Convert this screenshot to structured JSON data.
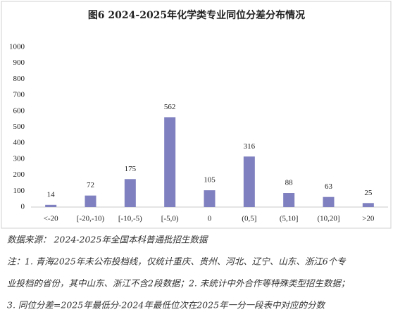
{
  "chart_data": {
    "type": "bar",
    "title": "图6  2024-2025年化学类专业同位分差分布情况",
    "categories": [
      "<-20",
      "[-20,-10)",
      "[-10,-5)",
      "[-5,0)",
      "0",
      "(0,5]",
      "(5,10]",
      "(10,20]",
      ">20"
    ],
    "values": [
      14,
      72,
      175,
      562,
      105,
      316,
      88,
      63,
      25
    ],
    "color": "#7f80bf",
    "ylim": [
      0,
      1000
    ],
    "yticks": [
      0,
      100,
      200,
      300,
      400,
      500,
      600,
      700,
      800,
      900,
      1000
    ],
    "grid": false
  },
  "notes": [
    "数据来源：  2024-2025年全国本科普通批招生数据",
    "注：1. 青海2025年未公布投档线，仅统计重庆、贵州、河北、辽宁、山东、浙江6个专",
    "业投档的省份，其中山东、浙江不含2段数据；2. 未统计中外合作等特殊类型招生数据；",
    "3. 同位分差=2025年最低分-2024年最低位次在2025年一分一段表中对应的分数"
  ]
}
